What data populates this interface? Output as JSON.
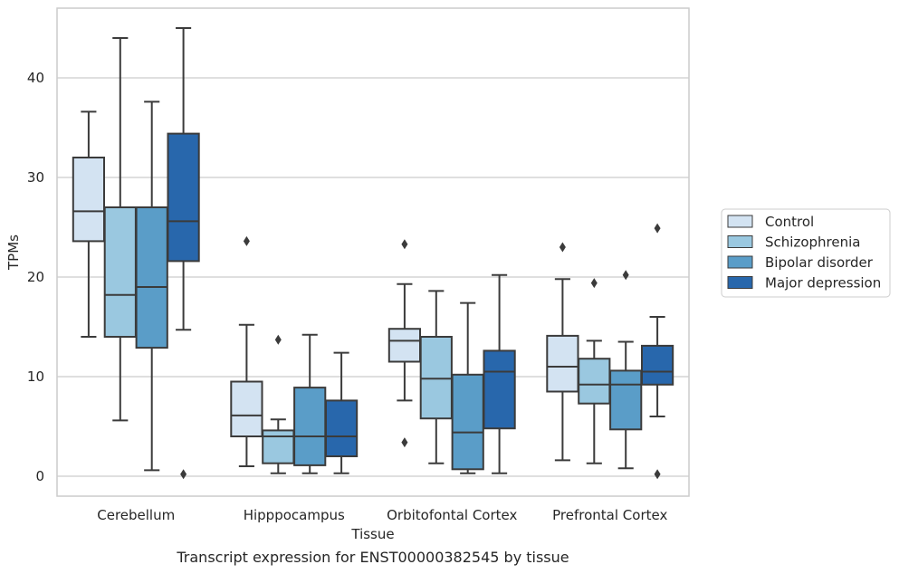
{
  "chart_data": {
    "type": "box",
    "caption": "Transcript expression for ENST00000382545 by tissue",
    "xlabel": "Tissue",
    "ylabel": "TPMs",
    "ylim": [
      -2,
      47
    ],
    "yticks": [
      0,
      10,
      20,
      30,
      40
    ],
    "grid": "horizontal",
    "legend_position": "right",
    "categories": [
      "Cerebellum",
      "Hipppocampus",
      "Orbitofontal Cortex",
      "Prefrontal Cortex"
    ],
    "series": [
      {
        "name": "Control",
        "color": "#d3e3f2",
        "boxes": [
          {
            "whisker_low": 14.0,
            "q1": 23.6,
            "median": 26.6,
            "q3": 32.0,
            "whisker_high": 36.6,
            "outliers": []
          },
          {
            "whisker_low": 1.0,
            "q1": 4.0,
            "median": 6.1,
            "q3": 9.5,
            "whisker_high": 15.2,
            "outliers": [
              23.6
            ]
          },
          {
            "whisker_low": 7.6,
            "q1": 11.5,
            "median": 13.6,
            "q3": 14.8,
            "whisker_high": 19.3,
            "outliers": [
              23.3,
              3.4
            ]
          },
          {
            "whisker_low": 1.6,
            "q1": 8.5,
            "median": 11.0,
            "q3": 14.1,
            "whisker_high": 19.8,
            "outliers": [
              23.0
            ]
          }
        ]
      },
      {
        "name": "Schizophrenia",
        "color": "#9ac8e0",
        "boxes": [
          {
            "whisker_low": 5.6,
            "q1": 14.0,
            "median": 18.2,
            "q3": 27.0,
            "whisker_high": 44.0,
            "outliers": []
          },
          {
            "whisker_low": 0.3,
            "q1": 1.3,
            "median": 4.0,
            "q3": 4.6,
            "whisker_high": 5.7,
            "outliers": [
              13.7
            ]
          },
          {
            "whisker_low": 1.3,
            "q1": 5.8,
            "median": 9.8,
            "q3": 14.0,
            "whisker_high": 18.6,
            "outliers": []
          },
          {
            "whisker_low": 1.3,
            "q1": 7.3,
            "median": 9.2,
            "q3": 11.8,
            "whisker_high": 13.6,
            "outliers": [
              19.4
            ]
          }
        ]
      },
      {
        "name": "Bipolar disorder",
        "color": "#5a9dc8",
        "boxes": [
          {
            "whisker_low": 0.6,
            "q1": 12.9,
            "median": 19.0,
            "q3": 27.0,
            "whisker_high": 37.6,
            "outliers": []
          },
          {
            "whisker_low": 0.3,
            "q1": 1.1,
            "median": 4.0,
            "q3": 8.9,
            "whisker_high": 14.2,
            "outliers": []
          },
          {
            "whisker_low": 0.3,
            "q1": 0.7,
            "median": 4.4,
            "q3": 10.2,
            "whisker_high": 17.4,
            "outliers": []
          },
          {
            "whisker_low": 0.8,
            "q1": 4.7,
            "median": 9.2,
            "q3": 10.6,
            "whisker_high": 13.5,
            "outliers": [
              20.2
            ]
          }
        ]
      },
      {
        "name": "Major depression",
        "color": "#2867ac",
        "boxes": [
          {
            "whisker_low": 14.7,
            "q1": 21.6,
            "median": 25.6,
            "q3": 34.4,
            "whisker_high": 45.0,
            "outliers": [
              0.2
            ]
          },
          {
            "whisker_low": 0.3,
            "q1": 2.0,
            "median": 4.0,
            "q3": 7.6,
            "whisker_high": 12.4,
            "outliers": []
          },
          {
            "whisker_low": 0.3,
            "q1": 4.8,
            "median": 10.5,
            "q3": 12.6,
            "whisker_high": 20.2,
            "outliers": []
          },
          {
            "whisker_low": 6.0,
            "q1": 9.2,
            "median": 10.5,
            "q3": 13.1,
            "whisker_high": 16.0,
            "outliers": [
              24.9,
              0.2
            ]
          }
        ]
      }
    ]
  }
}
